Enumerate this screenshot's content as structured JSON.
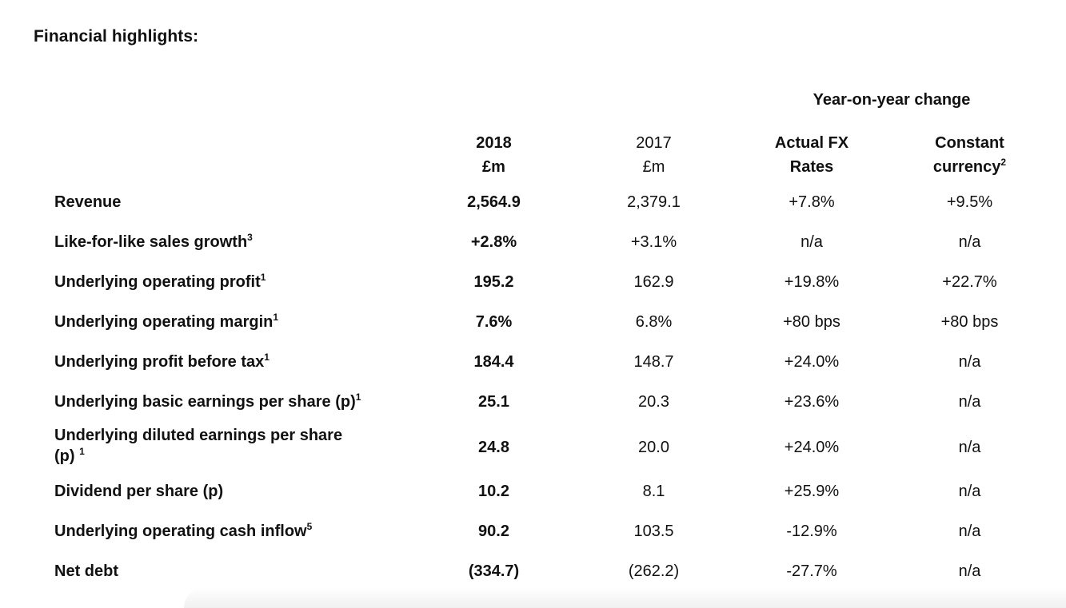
{
  "title": "Financial highlights:",
  "group_header": "Year-on-year change",
  "columns": [
    {
      "line1": "2018",
      "line2": "£m",
      "sup": ""
    },
    {
      "line1": "2017",
      "line2": "£m",
      "sup": ""
    },
    {
      "line1": "Actual FX",
      "line2": "Rates",
      "sup": ""
    },
    {
      "line1": "Constant",
      "line2": "currency",
      "sup": "2"
    }
  ],
  "rows": [
    {
      "label": "Revenue",
      "sup": "",
      "label2": "",
      "sup2": "",
      "v2018": "2,564.9",
      "v2017": "2,379.1",
      "actual_fx": "+7.8%",
      "constant": "+9.5%"
    },
    {
      "label": "Like-for-like sales growth",
      "sup": "3",
      "label2": "",
      "sup2": "",
      "v2018": "+2.8%",
      "v2017": "+3.1%",
      "actual_fx": "n/a",
      "constant": "n/a"
    },
    {
      "label": "Underlying operating profit",
      "sup": "1",
      "label2": "",
      "sup2": "",
      "v2018": "195.2",
      "v2017": "162.9",
      "actual_fx": "+19.8%",
      "constant": "+22.7%"
    },
    {
      "label": "Underlying operating margin",
      "sup": "1",
      "label2": "",
      "sup2": "",
      "v2018": "7.6%",
      "v2017": "6.8%",
      "actual_fx": "+80 bps",
      "constant": "+80 bps"
    },
    {
      "label": "Underlying profit before tax",
      "sup": "1",
      "label2": "",
      "sup2": "",
      "v2018": "184.4",
      "v2017": "148.7",
      "actual_fx": "+24.0%",
      "constant": "n/a"
    },
    {
      "label": "Underlying basic earnings per share (p)",
      "sup": "1",
      "label2": "",
      "sup2": "",
      "v2018": "25.1",
      "v2017": "20.3",
      "actual_fx": "+23.6%",
      "constant": "n/a"
    },
    {
      "label": "Underlying diluted earnings per share",
      "sup": "",
      "label2": "(p) ",
      "sup2": "1",
      "v2018": "24.8",
      "v2017": "20.0",
      "actual_fx": "+24.0%",
      "constant": "n/a"
    },
    {
      "label": "Dividend per share (p)",
      "sup": "",
      "label2": "",
      "sup2": "",
      "v2018": "10.2",
      "v2017": "8.1",
      "actual_fx": "+25.9%",
      "constant": "n/a"
    },
    {
      "label": "Underlying operating cash inflow",
      "sup": "5",
      "label2": "",
      "sup2": "",
      "v2018": "90.2",
      "v2017": "103.5",
      "actual_fx": "-12.9%",
      "constant": "n/a"
    },
    {
      "label": "Net debt",
      "sup": "",
      "label2": "",
      "sup2": "",
      "v2018": "(334.7)",
      "v2017": "(262.2)",
      "actual_fx": "-27.7%",
      "constant": "n/a"
    }
  ]
}
